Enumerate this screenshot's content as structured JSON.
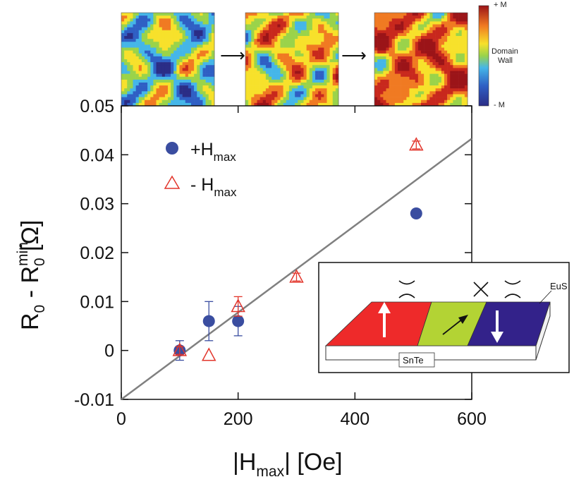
{
  "chart_data": {
    "type": "scatter",
    "xlabel": "|H",
    "xlabel_sub": "max",
    "xlabel_unit": "|  [Oe]",
    "ylabel": "R",
    "ylabel_sub1": "0",
    "ylabel_mid": " - R",
    "ylabel_sup": "min",
    "ylabel_sub2": "0",
    "ylabel_unit": " [Ω]",
    "xlim": [
      0,
      600
    ],
    "ylim": [
      -0.01,
      0.05
    ],
    "xticks": [
      0,
      200,
      400,
      600
    ],
    "yticks": [
      -0.01,
      0,
      0.01,
      0.02,
      0.03,
      0.04,
      0.05
    ],
    "ytick_labels": [
      "-0.01",
      "0",
      "0.01",
      "0.02",
      "0.03",
      "0.04",
      "0.05"
    ],
    "legend_position": "top-left",
    "series": [
      {
        "name": "+H",
        "name_sub": "max",
        "marker": "filled-circle",
        "color": "#3a4da0",
        "x": [
          100,
          150,
          200,
          505
        ],
        "y": [
          0.0,
          0.006,
          0.006,
          0.028
        ],
        "yerr": [
          0.002,
          0.004,
          0.003,
          0.0007
        ]
      },
      {
        "name": "- H",
        "name_sub": "max",
        "marker": "open-triangle",
        "color": "#e2352b",
        "x": [
          100,
          150,
          200,
          300,
          505
        ],
        "y": [
          0.0,
          -0.001,
          0.009,
          0.015,
          0.042
        ],
        "yerr": [
          0.0008,
          0.0,
          0.002,
          0.0008,
          0.0008
        ]
      }
    ],
    "fit_line": {
      "color": "#808080",
      "x": [
        0,
        600
      ],
      "y": [
        -0.01,
        0.0433
      ]
    }
  },
  "domain_maps": {
    "colorbar_top": "+ M",
    "colorbar_mid": "Domain",
    "colorbar_mid2": "Wall",
    "colorbar_bottom": "- M",
    "arrow": "⟶",
    "panel_fractions": [
      0.38,
      0.56,
      0.72
    ]
  },
  "inset": {
    "label_top": "EuS",
    "label_bottom": "SnTe",
    "colors": {
      "red": "#ee2a2a",
      "green": "#b3d334",
      "purple": "#33228a"
    }
  }
}
